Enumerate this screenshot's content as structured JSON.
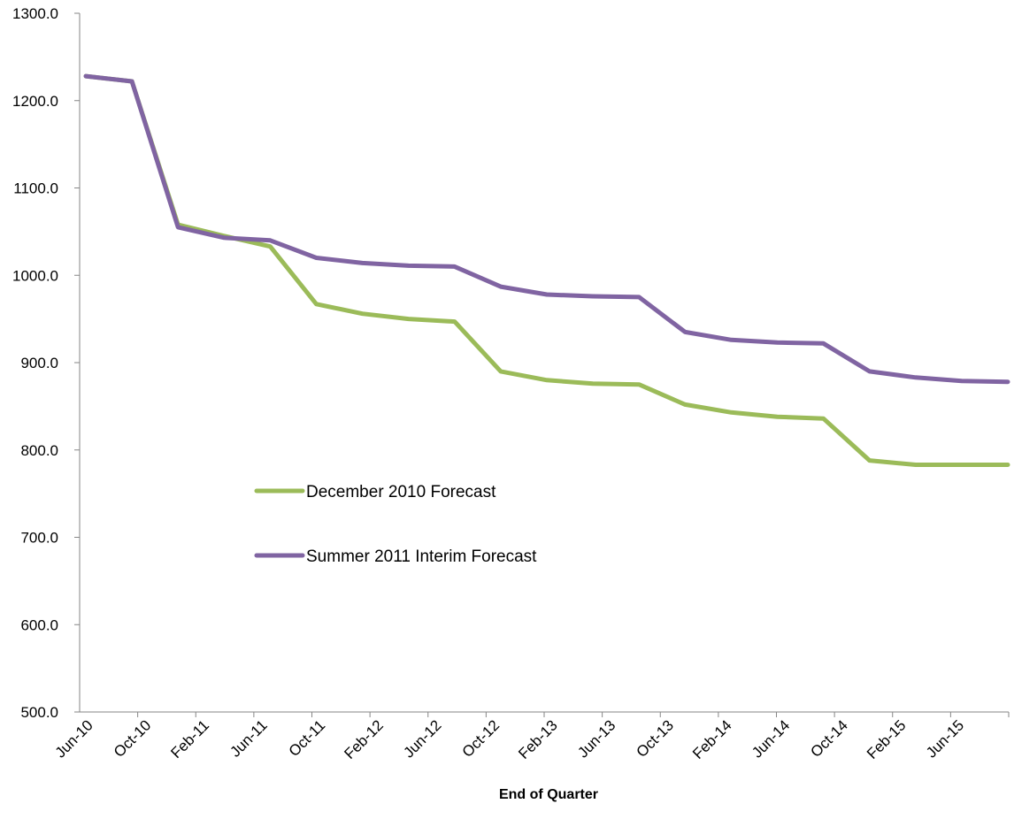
{
  "chart_data": {
    "type": "line",
    "xlabel": "End of Quarter",
    "ylabel": "",
    "ylim": [
      500,
      1300
    ],
    "y_ticks": [
      "500.0",
      "600.0",
      "700.0",
      "800.0",
      "900.0",
      "1000.0",
      "1100.0",
      "1200.0",
      "1300.0"
    ],
    "x_tick_labels": [
      "Jun-10",
      "Oct-10",
      "Feb-11",
      "Jun-11",
      "Oct-11",
      "Feb-12",
      "Jun-12",
      "Oct-12",
      "Feb-13",
      "Jun-13",
      "Oct-13",
      "Feb-14",
      "Jun-14",
      "Oct-14",
      "Feb-15",
      "Jun-15"
    ],
    "legend_position": "center-left",
    "grid": false,
    "series": [
      {
        "name": "December 2010 Forecast",
        "color": "#9BBB59",
        "values": [
          1228,
          1222,
          1058,
          1045,
          1033,
          967,
          956,
          950,
          947,
          890,
          880,
          876,
          875,
          852,
          843,
          838,
          836,
          788,
          783,
          783,
          783
        ]
      },
      {
        "name": "Summer 2011 Interim Forecast",
        "color": "#8064A2",
        "values": [
          1228,
          1222,
          1055,
          1043,
          1040,
          1020,
          1014,
          1011,
          1010,
          987,
          978,
          976,
          975,
          935,
          926,
          923,
          922,
          890,
          883,
          879,
          878
        ]
      }
    ]
  }
}
